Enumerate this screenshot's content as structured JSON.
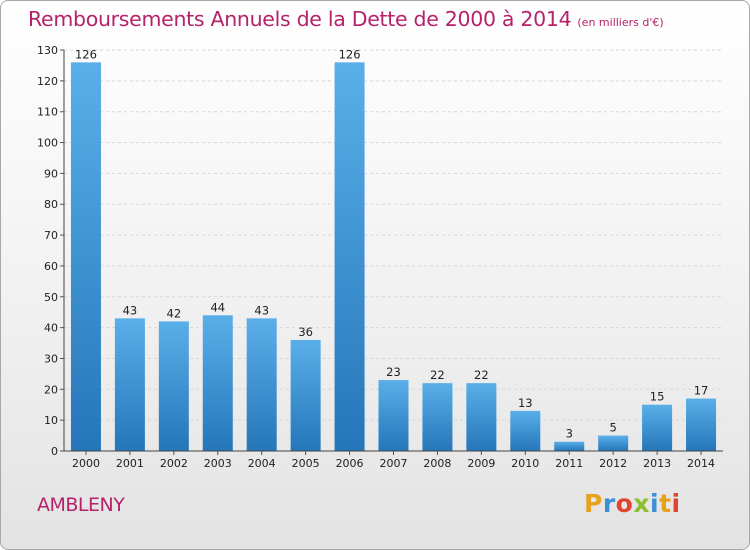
{
  "title": "Remboursements Annuels de la Dette de 2000 à 2014",
  "subtitle": "(en milliers d'€)",
  "commune": "AMBLENY",
  "logo": {
    "letters": [
      "P",
      "r",
      "o",
      "x",
      "i",
      "t",
      "i"
    ],
    "colors": [
      "#e8a11a",
      "#3a8fd6",
      "#e0442e",
      "#8dbf2f",
      "#3a8fd6",
      "#e8a11a",
      "#e0442e"
    ]
  },
  "colors": {
    "title": "#b5226a",
    "bar_light": "#5aafe9",
    "bar_dark": "#2576b9",
    "grid": "#d6d6d6"
  },
  "chart_data": {
    "type": "bar",
    "categories": [
      "2000",
      "2001",
      "2002",
      "2003",
      "2004",
      "2005",
      "2006",
      "2007",
      "2008",
      "2009",
      "2010",
      "2011",
      "2012",
      "2013",
      "2014"
    ],
    "values": [
      126,
      43,
      42,
      44,
      43,
      36,
      126,
      23,
      22,
      22,
      13,
      3,
      5,
      15,
      17
    ],
    "ylim": [
      0,
      130
    ],
    "yticks": [
      0,
      10,
      20,
      30,
      40,
      50,
      60,
      70,
      80,
      90,
      100,
      110,
      120,
      130
    ],
    "grid": "horizontal dashed",
    "legend": "none",
    "xlabel": "",
    "ylabel": ""
  }
}
